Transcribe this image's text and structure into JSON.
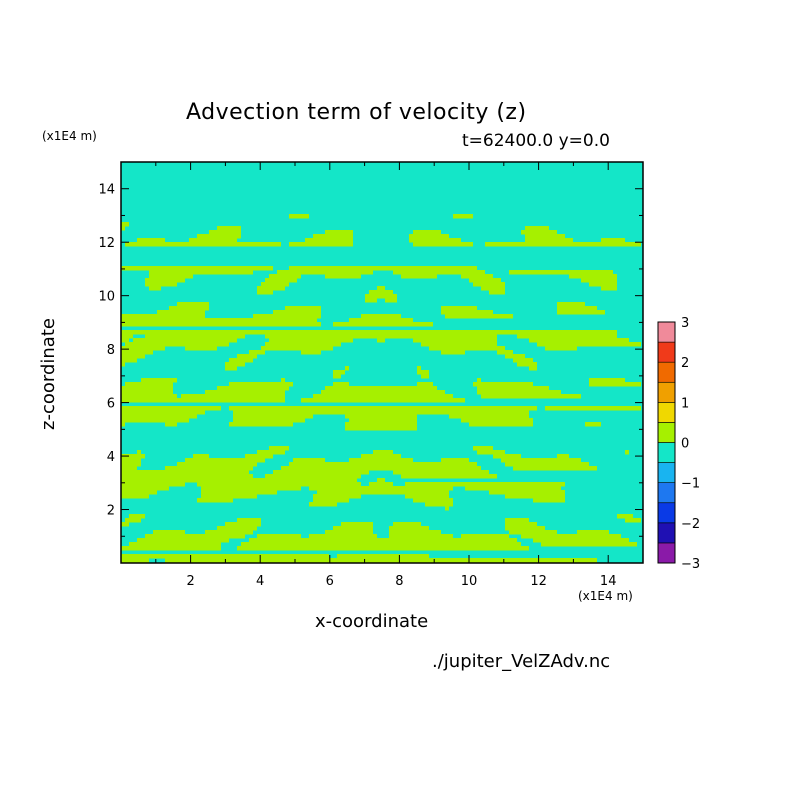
{
  "chart_data": {
    "type": "heatmap",
    "title": "Advection term of velocity (z)",
    "subtitle": "t=62400.0 y=0.0",
    "xlabel": "x-coordinate",
    "ylabel": "z-coordinate",
    "x_unit": "(x1E4 m)",
    "y_unit": "(x1E4 m)",
    "xlim": [
      0,
      15
    ],
    "ylim": [
      0,
      15
    ],
    "x_ticks": [
      "2",
      "4",
      "6",
      "8",
      "10",
      "12",
      "14"
    ],
    "y_ticks": [
      "2",
      "4",
      "6",
      "8",
      "10",
      "12",
      "14"
    ],
    "colorbar": {
      "levels": [
        -3,
        -2.5,
        -2,
        -1.5,
        -1,
        -0.5,
        0,
        0.5,
        1,
        1.5,
        2,
        2.5,
        3
      ],
      "tick_labels": [
        "3",
        "2",
        "1",
        "0",
        "−1",
        "−2",
        "−3"
      ],
      "colors": [
        "#8a1aa8",
        "#1f10b3",
        "#0a3ae6",
        "#1e78f0",
        "#19b4f0",
        "#14e6c8",
        "#a6f000",
        "#f0d800",
        "#f0a000",
        "#f06a00",
        "#f03a1a",
        "#f08a9a"
      ]
    },
    "legend_placement": "right colorbar",
    "grid": false,
    "fill_colors": {
      "below_zero": "#14e6c8",
      "above_zero": "#a6f000"
    }
  },
  "footer": {
    "filename": "./jupiter_VelZAdv.nc"
  }
}
